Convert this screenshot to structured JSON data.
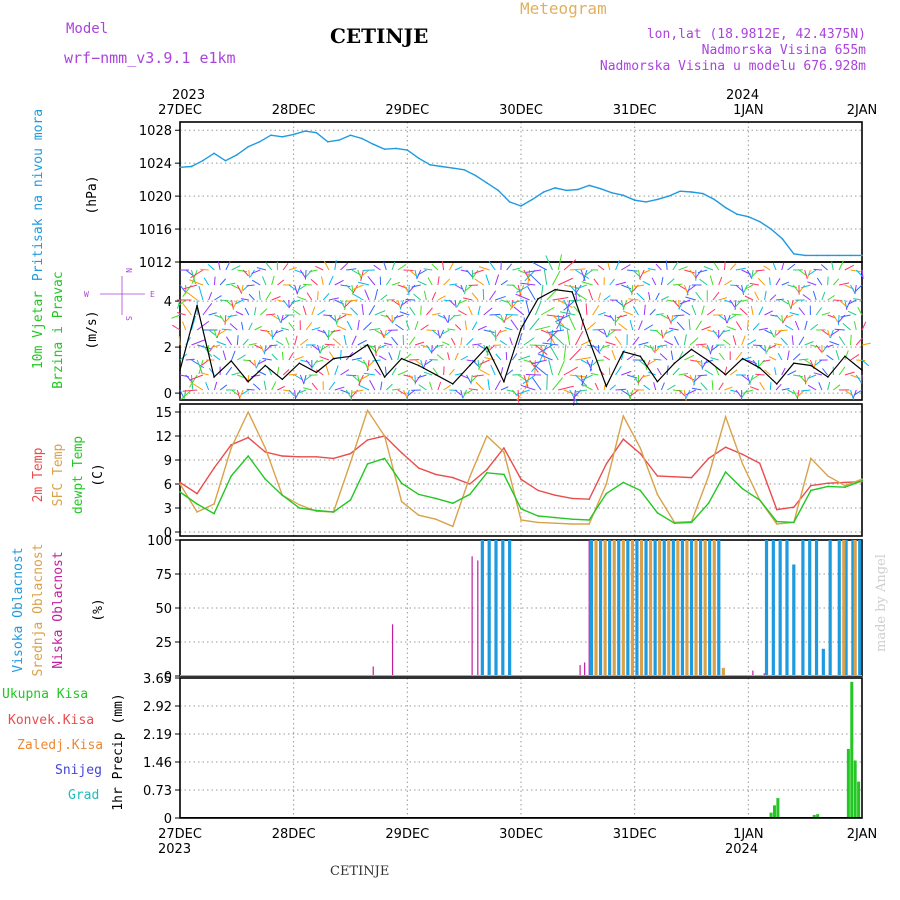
{
  "header": {
    "model_label": "Model",
    "model_name": "wrf−nmm_v3.9.1  e1km",
    "city": "CETINJE",
    "meteogram": "Meteogram",
    "lonlat": "lon,lat (18.9812E, 42.4375N)",
    "elevation": "Nadmorska Visina 655m",
    "model_elevation": "Nadmorska Visina u modelu 676.928m"
  },
  "footer": {
    "city": "CETINJE",
    "credit": "made by Angel"
  },
  "colors": {
    "pressure": "#1e9be0",
    "temp2m": "#ea4c4c",
    "sfc_temp": "#d9a24a",
    "dewpt": "#22c722",
    "high_cloud": "#1e9be0",
    "mid_cloud": "#d9a24a",
    "low_cloud": "#c21e9e",
    "wind_speed": "#000000",
    "gust": "#ff5555",
    "label_purple": "#aa44dd",
    "meteogram_title": "#e0b060",
    "precip_total": "#22c722",
    "precip_conv": "#ea4c4c",
    "precip_frz": "#ee8833",
    "snow": "#4444dd",
    "hail": "#22bbbb"
  },
  "time_axis": {
    "top_years": [
      {
        "label": "2023",
        "day": 0
      },
      {
        "label": "2024",
        "day": 5
      }
    ],
    "bottom_years": [
      {
        "label": "2023",
        "day": 0
      },
      {
        "label": "2024",
        "day": 5
      }
    ],
    "days": [
      "27DEC",
      "28DEC",
      "29DEC",
      "30DEC",
      "31DEC",
      "1JAN",
      "2JAN"
    ]
  },
  "chart_data": [
    {
      "type": "line",
      "ylabel": "Pritisak na nivou mora",
      "unit": "(hPa)",
      "ylim": [
        1012,
        1029
      ],
      "yticks": [
        "1012",
        "1016",
        "1020",
        "1024",
        "1028"
      ],
      "grid": true,
      "series": [
        {
          "x": [
            0,
            0.1,
            0.2,
            0.3,
            0.4,
            0.5,
            0.6,
            0.7,
            0.8,
            0.9,
            1.0,
            1.1,
            1.2,
            1.3,
            1.4,
            1.5,
            1.6,
            1.7,
            1.8,
            1.9,
            2.0,
            2.1,
            2.2,
            2.3,
            2.4,
            2.5,
            2.6,
            2.7,
            2.8,
            2.9,
            3.0,
            3.1,
            3.2,
            3.3,
            3.4,
            3.5,
            3.6,
            3.7,
            3.8,
            3.9,
            4.0,
            4.1,
            4.2,
            4.3,
            4.4,
            4.5,
            4.6,
            4.7,
            4.8,
            4.9,
            5.0,
            5.1,
            5.2,
            5.3,
            5.4,
            5.5,
            5.6,
            5.7,
            5.8,
            5.9,
            6.0
          ],
          "y": [
            1023.5,
            1023.6,
            1024.3,
            1025.2,
            1024.3,
            1025.0,
            1026.0,
            1026.6,
            1027.4,
            1027.2,
            1027.5,
            1027.9,
            1027.7,
            1026.6,
            1026.8,
            1027.4,
            1027.0,
            1026.3,
            1025.7,
            1025.8,
            1025.6,
            1024.6,
            1023.8,
            1023.6,
            1023.4,
            1023.2,
            1022.5,
            1021.6,
            1020.7,
            1019.3,
            1018.8,
            1019.6,
            1020.5,
            1021.0,
            1020.7,
            1020.8,
            1021.3,
            1020.9,
            1020.4,
            1020.1,
            1019.5,
            1019.3,
            1019.6,
            1020.0,
            1020.6,
            1020.5,
            1020.3,
            1019.6,
            1018.6,
            1017.8,
            1017.5,
            1016.9,
            1016.0,
            1014.8,
            1013.0,
            1012.8,
            1012.8,
            1012.8,
            1012.8,
            1012.8,
            1012.8
          ]
        }
      ]
    },
    {
      "type": "line",
      "ylabel": "10m Vjetar Brzina i Pravac",
      "unit": "(m/s)",
      "ylim": [
        -0.3,
        5.7
      ],
      "yticks": [
        "0",
        "2",
        "4"
      ],
      "compass": {
        "north": "N",
        "west": "W",
        "east": "E",
        "south": "S"
      },
      "grid": true,
      "series": [
        {
          "name": "wind_speed",
          "x": [
            0,
            0.15,
            0.3,
            0.45,
            0.6,
            0.75,
            0.9,
            1.05,
            1.2,
            1.35,
            1.5,
            1.65,
            1.8,
            1.95,
            2.1,
            2.25,
            2.4,
            2.55,
            2.7,
            2.85,
            3.0,
            3.15,
            3.3,
            3.45,
            3.6,
            3.75,
            3.9,
            4.05,
            4.2,
            4.35,
            4.5,
            4.65,
            4.8,
            4.95,
            5.1,
            5.25,
            5.4,
            5.55,
            5.7,
            5.85,
            6.0
          ],
          "y": [
            1.0,
            3.8,
            0.7,
            1.4,
            0.5,
            1.2,
            0.6,
            1.3,
            0.9,
            1.5,
            1.6,
            2.1,
            0.7,
            1.5,
            1.2,
            0.8,
            0.4,
            1.2,
            2.0,
            0.5,
            2.8,
            4.1,
            4.5,
            4.4,
            2.3,
            0.3,
            1.8,
            1.6,
            0.5,
            1.3,
            1.9,
            1.4,
            0.8,
            1.5,
            1.1,
            0.4,
            1.3,
            1.2,
            0.7,
            1.6,
            1.0
          ]
        }
      ]
    },
    {
      "type": "line",
      "ylabel": "2m Temp / SFC Temp / dewpt Temp",
      "unit": "(C)",
      "ylim": [
        -0.5,
        16
      ],
      "yticks": [
        "0",
        "3",
        "6",
        "9",
        "12",
        "15"
      ],
      "grid": true,
      "series": [
        {
          "name": "2m Temp",
          "x": [
            0,
            0.15,
            0.3,
            0.45,
            0.6,
            0.75,
            0.9,
            1.05,
            1.2,
            1.35,
            1.5,
            1.65,
            1.8,
            1.95,
            2.1,
            2.25,
            2.4,
            2.55,
            2.7,
            2.85,
            3.0,
            3.15,
            3.3,
            3.45,
            3.6,
            3.75,
            3.9,
            4.05,
            4.2,
            4.35,
            4.5,
            4.65,
            4.8,
            4.95,
            5.1,
            5.25,
            5.4,
            5.55,
            5.7,
            5.85,
            6.0
          ],
          "y": [
            6.2,
            4.8,
            8.0,
            10.9,
            11.8,
            10.0,
            9.5,
            9.4,
            9.4,
            9.2,
            9.8,
            11.5,
            12.0,
            9.9,
            8.0,
            7.2,
            6.8,
            6.0,
            7.8,
            10.5,
            6.6,
            5.2,
            4.6,
            4.2,
            4.1,
            8.5,
            11.6,
            9.8,
            7.0,
            6.9,
            6.8,
            9.2,
            10.6,
            9.7,
            8.6,
            2.8,
            3.1,
            5.8,
            6.1,
            6.2,
            6.3
          ]
        },
        {
          "name": "SFC Temp",
          "x": [
            0,
            0.15,
            0.3,
            0.45,
            0.6,
            0.75,
            0.9,
            1.05,
            1.2,
            1.35,
            1.5,
            1.65,
            1.8,
            1.95,
            2.1,
            2.25,
            2.4,
            2.55,
            2.7,
            2.85,
            3.0,
            3.15,
            3.3,
            3.45,
            3.6,
            3.75,
            3.9,
            4.05,
            4.2,
            4.35,
            4.5,
            4.65,
            4.8,
            4.95,
            5.1,
            5.25,
            5.4,
            5.55,
            5.7,
            5.85,
            6.0
          ],
          "y": [
            6.0,
            2.5,
            3.5,
            10.5,
            15.0,
            10.5,
            4.6,
            3.4,
            2.6,
            2.5,
            8.7,
            15.2,
            12.0,
            3.8,
            2.1,
            1.6,
            0.7,
            6.9,
            12.0,
            10.0,
            1.5,
            1.2,
            1.1,
            1.0,
            1.0,
            6.0,
            14.5,
            10.5,
            4.7,
            1.2,
            1.3,
            7.0,
            14.4,
            8.5,
            4.0,
            1.0,
            1.2,
            9.2,
            7.0,
            5.8,
            6.6
          ]
        },
        {
          "name": "dewpt Temp",
          "x": [
            0,
            0.15,
            0.3,
            0.45,
            0.6,
            0.75,
            0.9,
            1.05,
            1.2,
            1.35,
            1.5,
            1.65,
            1.8,
            1.95,
            2.1,
            2.25,
            2.4,
            2.55,
            2.7,
            2.85,
            3.0,
            3.15,
            3.3,
            3.45,
            3.6,
            3.75,
            3.9,
            4.05,
            4.2,
            4.35,
            4.5,
            4.65,
            4.8,
            4.95,
            5.1,
            5.25,
            5.4,
            5.55,
            5.7,
            5.85,
            6.0
          ],
          "y": [
            5.0,
            3.5,
            2.3,
            7.0,
            9.5,
            6.6,
            4.6,
            3.0,
            2.7,
            2.5,
            4.0,
            8.5,
            9.2,
            6.1,
            4.7,
            4.2,
            3.6,
            4.7,
            7.4,
            7.2,
            2.9,
            2.0,
            1.8,
            1.6,
            1.5,
            4.8,
            6.2,
            5.2,
            2.4,
            1.1,
            1.2,
            3.6,
            7.5,
            5.4,
            4.0,
            1.3,
            1.2,
            5.2,
            5.7,
            5.6,
            6.4
          ]
        }
      ]
    },
    {
      "type": "bar",
      "ylabel": "Visoka Oblacnost / Srednja Oblacnost / Niska Oblacnost",
      "unit": "(%)",
      "ylim": [
        0,
        100
      ],
      "yticks": [
        "0",
        "25",
        "50",
        "75",
        "100"
      ],
      "grid": true,
      "series": [
        {
          "name": "Visoka Oblacnost",
          "x": [
            2.66,
            2.72,
            2.78,
            2.84,
            2.9,
            3.62,
            3.7,
            3.78,
            3.86,
            3.94,
            4.02,
            4.1,
            4.18,
            4.26,
            4.34,
            4.42,
            4.5,
            4.58,
            4.66,
            4.74,
            5.16,
            5.22,
            5.28,
            5.34,
            5.4,
            5.48,
            5.54,
            5.6,
            5.66,
            5.72,
            5.8,
            5.86,
            5.92,
            5.98
          ],
          "y": [
            100,
            100,
            100,
            100,
            100,
            100,
            100,
            100,
            100,
            100,
            100,
            100,
            100,
            100,
            100,
            100,
            100,
            100,
            100,
            100,
            100,
            100,
            100,
            100,
            82,
            100,
            100,
            100,
            20,
            100,
            100,
            100,
            100,
            100
          ]
        },
        {
          "name": "Srednja Oblacnost",
          "x": [
            3.66,
            3.74,
            3.82,
            3.9,
            3.98,
            4.06,
            4.14,
            4.22,
            4.3,
            4.38,
            4.46,
            4.54,
            4.62,
            4.7,
            4.78,
            5.84,
            5.94
          ],
          "y": [
            100,
            100,
            100,
            100,
            100,
            100,
            100,
            100,
            100,
            100,
            100,
            100,
            100,
            100,
            6,
            100,
            100
          ]
        },
        {
          "name": "Niska Oblacnost",
          "x": [
            1.7,
            1.87,
            2.57,
            2.62,
            3.52,
            3.56,
            3.6,
            5.04,
            5.14
          ],
          "y": [
            7,
            38,
            88,
            85,
            8,
            10,
            100,
            4,
            2
          ]
        }
      ]
    },
    {
      "type": "bar",
      "ylabel": "1hr Precip",
      "unit": "(mm)",
      "ylim": [
        0,
        3.65
      ],
      "yticks": [
        "0",
        "0.73",
        "1.46",
        "2.19",
        "2.92",
        "3.65"
      ],
      "grid": true,
      "legend": [
        "Ukupna Kisa",
        "Konvek.Kisa",
        "Zaledj.Kisa",
        "Snijeg",
        "Grad"
      ],
      "series": [
        {
          "name": "Ukupna Kisa",
          "x": [
            5.2,
            5.23,
            5.26,
            5.58,
            5.61,
            5.88,
            5.91,
            5.94,
            5.97
          ],
          "y": [
            0.14,
            0.33,
            0.52,
            0.08,
            0.1,
            1.8,
            3.55,
            1.5,
            0.95
          ]
        }
      ]
    }
  ]
}
